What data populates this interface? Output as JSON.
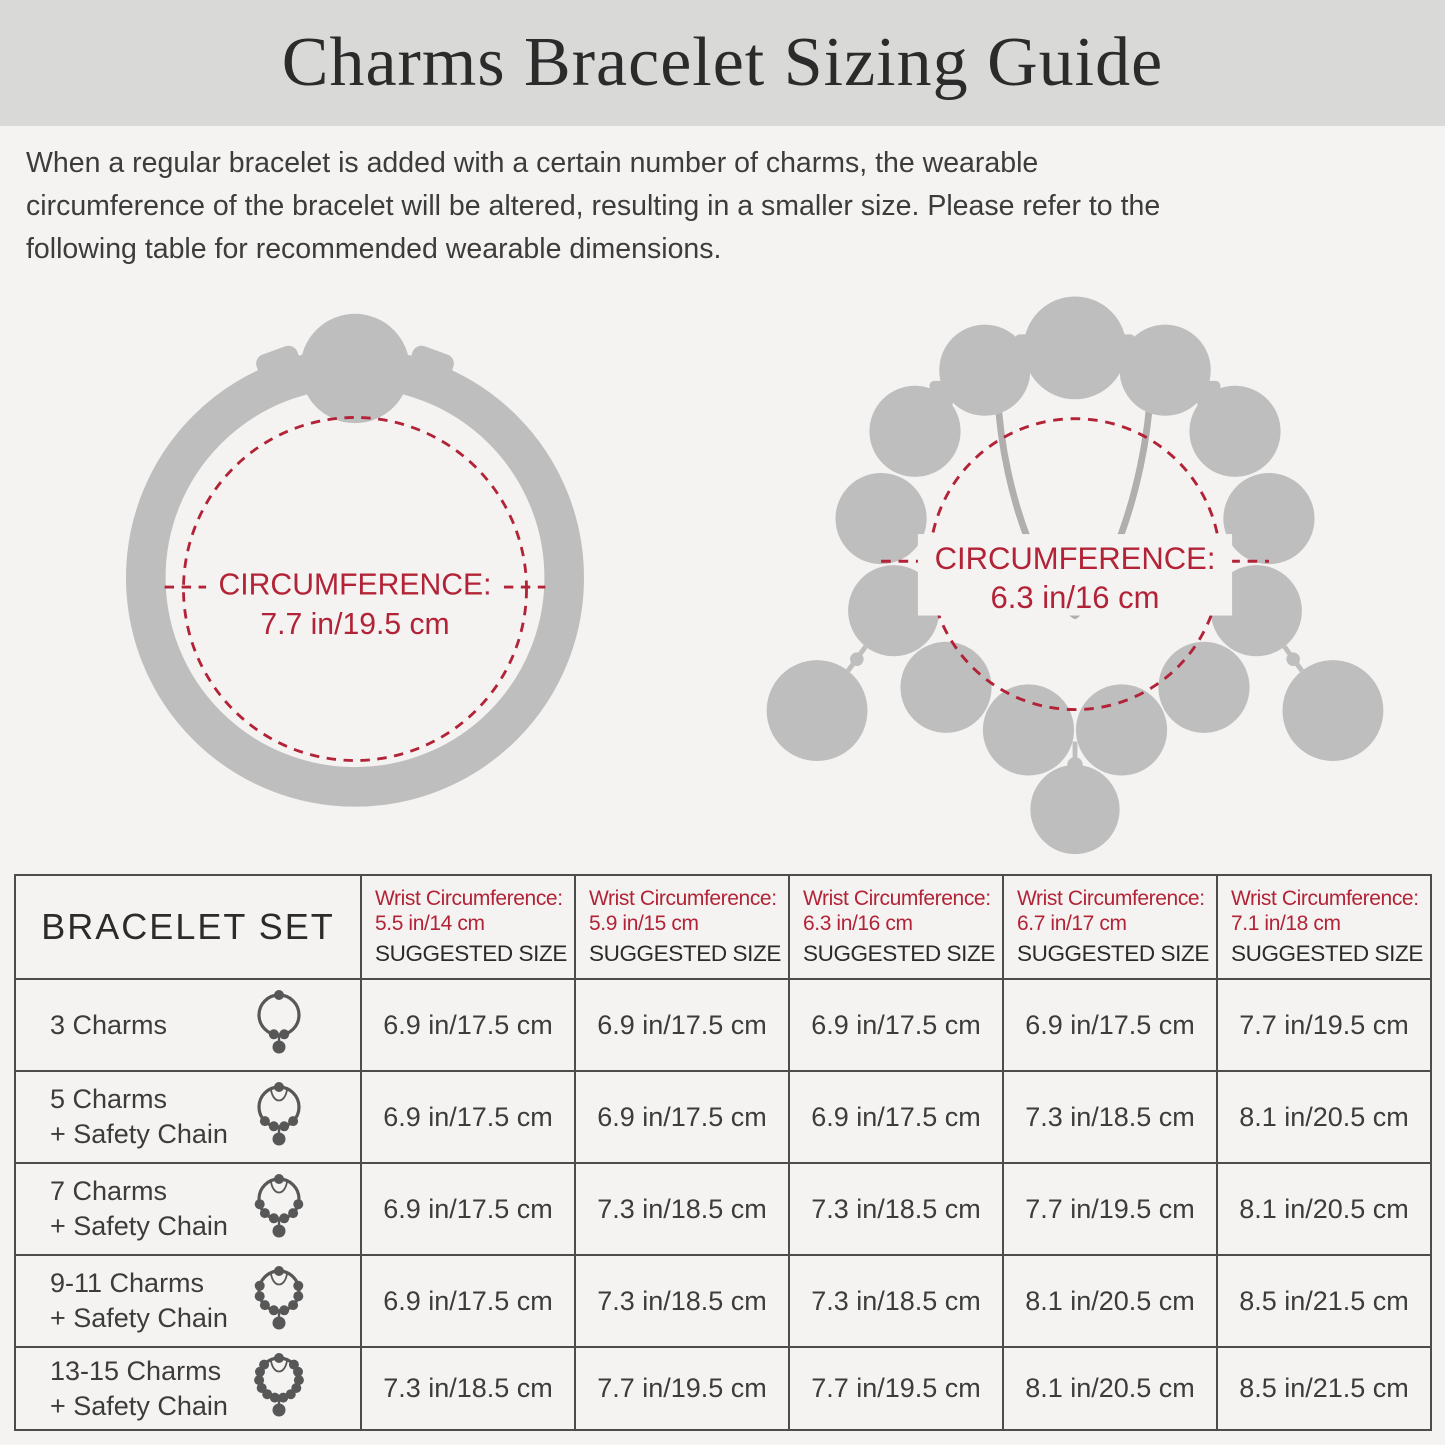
{
  "header": {
    "title": "Charms Bracelet Sizing Guide"
  },
  "intro": {
    "text": "When a regular bracelet is added with a certain number of charms, the wearable\ncircumference of the bracelet will be altered, resulting in a smaller size. Please refer to the\nfollowing table for recommended wearable dimensions."
  },
  "illustrations": {
    "plain_bracelet": {
      "circumference_label": "CIRCUMFERENCE:",
      "circumference_value": "7.7 in/19.5 cm"
    },
    "charm_bracelet": {
      "circumference_label": "CIRCUMFERENCE:",
      "circumference_value": "6.3 in/16 cm"
    }
  },
  "table": {
    "bracelet_set_header": "BRACELET SET",
    "suggested_size_label": "SUGGESTED SIZE",
    "wrist_columns": [
      {
        "line1": "Wrist Circumference:",
        "line2": "5.5 in/14 cm"
      },
      {
        "line1": "Wrist Circumference:",
        "line2": "5.9 in/15 cm"
      },
      {
        "line1": "Wrist Circumference:",
        "line2": "6.3 in/16 cm"
      },
      {
        "line1": "Wrist Circumference:",
        "line2": "6.7 in/17 cm"
      },
      {
        "line1": "Wrist Circumference:",
        "line2": "7.1 in/18 cm"
      }
    ],
    "rows": [
      {
        "label": "3 Charms",
        "charms": 3,
        "safety_chain": false,
        "values": [
          "6.9 in/17.5 cm",
          "6.9 in/17.5 cm",
          "6.9 in/17.5 cm",
          "6.9 in/17.5 cm",
          "7.7 in/19.5 cm"
        ]
      },
      {
        "label": "5 Charms\n+ Safety Chain",
        "charms": 5,
        "safety_chain": true,
        "values": [
          "6.9 in/17.5 cm",
          "6.9 in/17.5 cm",
          "6.9 in/17.5 cm",
          "7.3 in/18.5 cm",
          "8.1 in/20.5 cm"
        ]
      },
      {
        "label": "7 Charms\n+ Safety Chain",
        "charms": 7,
        "safety_chain": true,
        "values": [
          "6.9 in/17.5 cm",
          "7.3 in/18.5 cm",
          "7.3 in/18.5 cm",
          "7.7 in/19.5 cm",
          "8.1 in/20.5 cm"
        ]
      },
      {
        "label": "9-11 Charms\n+ Safety Chain",
        "charms": 9,
        "safety_chain": true,
        "values": [
          "6.9 in/17.5 cm",
          "7.3 in/18.5 cm",
          "7.3 in/18.5 cm",
          "8.1 in/20.5 cm",
          "8.5 in/21.5 cm"
        ]
      },
      {
        "label": "13-15 Charms\n+ Safety Chain",
        "charms": 13,
        "safety_chain": true,
        "values": [
          "7.3 in/18.5 cm",
          "7.7 in/19.5 cm",
          "7.7 in/19.5 cm",
          "8.1 in/20.5 cm",
          "8.5 in/21.5 cm"
        ]
      }
    ]
  },
  "colors": {
    "page_bg": "#f4f3f1",
    "band_bg": "#d9d9d8",
    "accent_red": "#b22337",
    "silhouette_gray": "#bfbebe",
    "chain_gray": "#b0afae",
    "icon_gray": "#575757",
    "table_border": "#4c4c4c",
    "text_dark": "#2b2b2b",
    "text_body": "#3c3c3c"
  }
}
